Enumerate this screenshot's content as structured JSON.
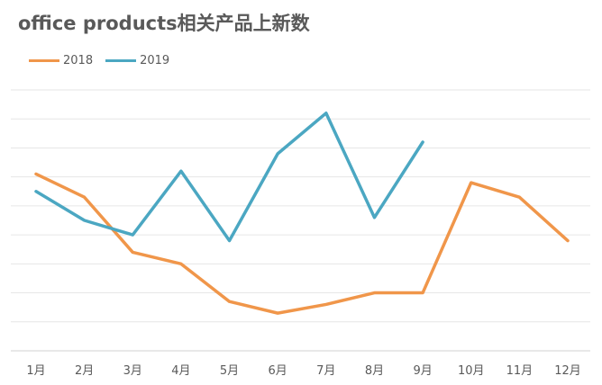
{
  "chart_data": {
    "type": "line",
    "title": "office products相关产品上新数",
    "categories": [
      "1月",
      "2月",
      "3月",
      "4月",
      "5月",
      "6月",
      "7月",
      "8月",
      "9月",
      "10月",
      "11月",
      "12月"
    ],
    "series": [
      {
        "name": "2018",
        "color": "#F0964A",
        "values": [
          6.1,
          5.3,
          3.4,
          3.0,
          1.7,
          1.3,
          1.6,
          2.0,
          2.0,
          5.8,
          5.3,
          3.8
        ]
      },
      {
        "name": "2019",
        "color": "#4BA7C2",
        "values": [
          5.5,
          4.5,
          4.0,
          6.2,
          3.8,
          6.8,
          8.2,
          4.6,
          7.2,
          null,
          null,
          null
        ]
      }
    ],
    "ylim": [
      0,
      9
    ],
    "grid": true,
    "legend": "top-left",
    "xlabel": "",
    "ylabel": ""
  }
}
